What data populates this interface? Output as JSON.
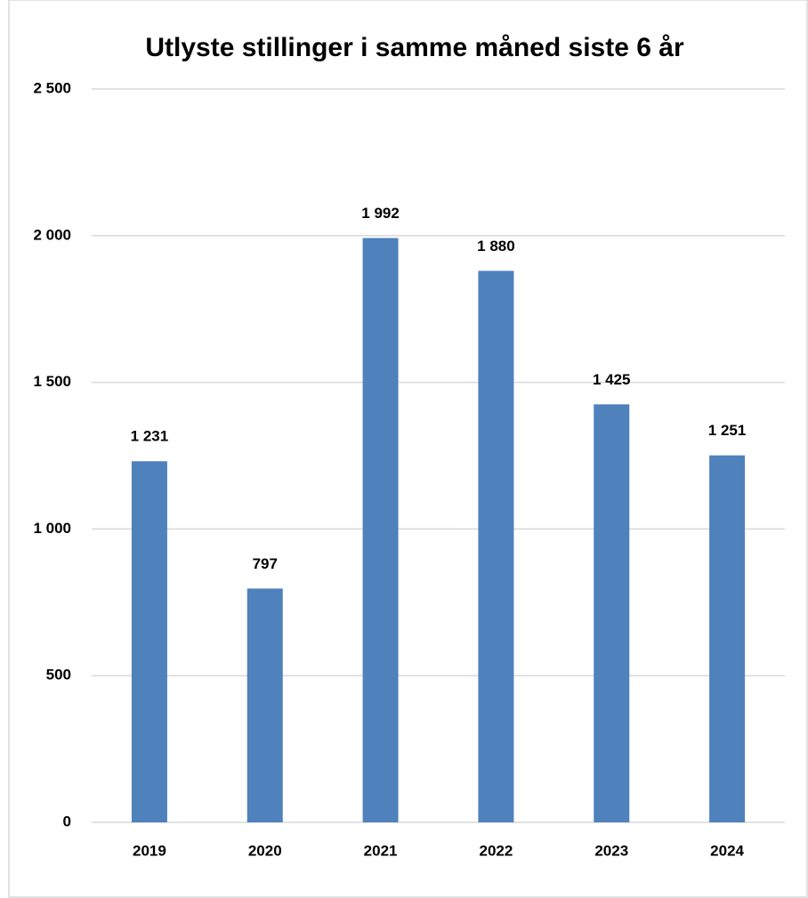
{
  "chart_data": {
    "type": "bar",
    "title": "Utlyste stillinger i samme måned siste 6 år",
    "categories": [
      "2019",
      "2020",
      "2021",
      "2022",
      "2023",
      "2024"
    ],
    "values": [
      1231,
      797,
      1992,
      1880,
      1425,
      1251
    ],
    "value_labels": [
      "1 231",
      "797",
      "1 992",
      "1 880",
      "1 425",
      "1 251"
    ],
    "color": "#4f81bd",
    "ylim": [
      0,
      2500
    ],
    "yticks": [
      0,
      500,
      {
        "value": 1000,
        "label": "1 000"
      },
      {
        "value": 1500,
        "label": "1 500"
      },
      {
        "value": 2000,
        "label": "2 000"
      },
      {
        "value": 2500,
        "label": "2 500"
      }
    ],
    "grid": true
  }
}
